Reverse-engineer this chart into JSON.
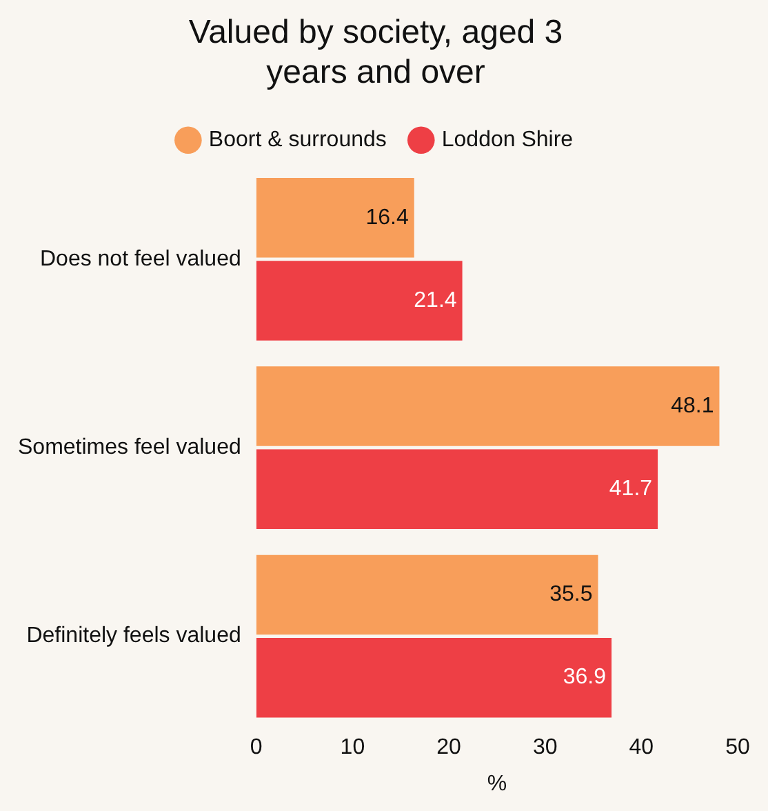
{
  "chart_data": {
    "type": "bar",
    "orientation": "horizontal",
    "title": "Valued by society, aged 3 years and over",
    "xlabel": "%",
    "categories": [
      "Does not feel valued",
      "Sometimes feel valued",
      "Definitely feels valued"
    ],
    "series": [
      {
        "name": "Boort & surrounds",
        "color": "#f89e5a",
        "values": [
          16.4,
          48.1,
          35.5
        ]
      },
      {
        "name": "Loddon Shire",
        "color": "#ee3f45",
        "values": [
          21.4,
          41.7,
          36.9
        ]
      }
    ],
    "xlim": [
      0,
      50
    ],
    "xticks": [
      0,
      10,
      20,
      30,
      40,
      50
    ],
    "grid": false,
    "legend": "top",
    "data_labels": true
  }
}
